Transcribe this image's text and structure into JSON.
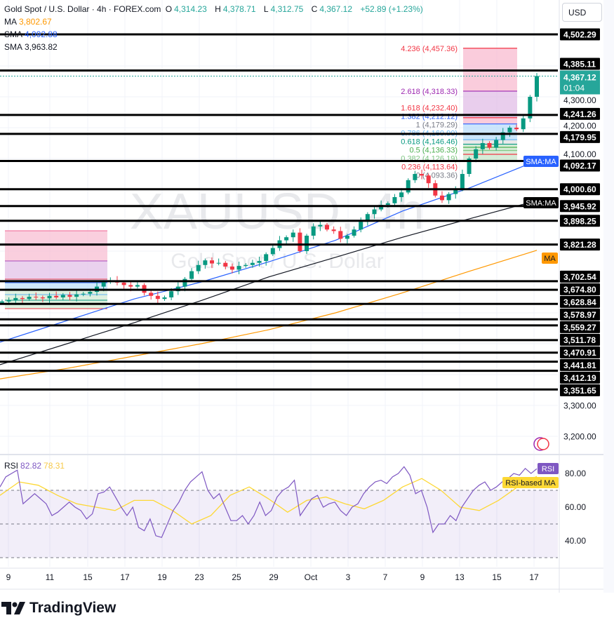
{
  "header": {
    "symbol": "Gold Spot / U.S. Dollar · 4h · FOREX.com",
    "open_label": "O",
    "open": "4,314.23",
    "high_label": "H",
    "high": "4,378.71",
    "low_label": "L",
    "low": "4,312.75",
    "close_label": "C",
    "close": "4,367.12",
    "change": "+52.89 (+1.23%)"
  },
  "indicators": [
    {
      "name": "MA",
      "value": "3,802.67",
      "color": "#ff9800"
    },
    {
      "name": "SMA",
      "value": "4,092.88",
      "color": "#2962ff"
    },
    {
      "name": "SMA",
      "value": "3,963.82",
      "color": "#131722"
    }
  ],
  "currency_button": "USD",
  "watermark": {
    "line1": "XAUUSD, 4h",
    "line2": "Gold Spot / U.S. Dollar"
  },
  "current_price": {
    "value": "4,367.12",
    "countdown": "01:04",
    "color": "#26a69a"
  },
  "price_axis_ticks": [
    "4,300.00",
    "4,200.00",
    "4,100.00",
    "3,300.00",
    "3,200.00"
  ],
  "level_lines": [
    "4,502.29",
    "4,385.11",
    "4,241.26",
    "4,179.95",
    "4,092.17",
    "4,000.60",
    "3,945.92",
    "3,898.25",
    "3,821.28",
    "3,702.54",
    "3,674.80",
    "3,628.84",
    "3,578.97",
    "3,559.27",
    "3,511.78",
    "3,470.91",
    "3,441.81",
    "3,412.19",
    "3,351.65"
  ],
  "fib_levels": [
    {
      "label": "4.236 (4,457.36)",
      "price": 4457.36,
      "color": "#f23645"
    },
    {
      "label": "2.618 (4,318.33)",
      "price": 4318.33,
      "color": "#9c27b0"
    },
    {
      "label": "1.618 (4,232.40)",
      "price": 4232.4,
      "color": "#f23645"
    },
    {
      "label": "1.382 (4,212.12)",
      "price": 4212.12,
      "color": "#2962ff"
    },
    {
      "label": "1 (4,179.29)",
      "price": 4179.29,
      "color": "#787b86"
    },
    {
      "label": "0.786 (4,160.90)",
      "price": 4160.9,
      "color": "#64b5f6"
    },
    {
      "label": "0.618 (4,146.46)",
      "price": 4146.46,
      "color": "#089981"
    },
    {
      "label": "0.5 (4,136.33)",
      "price": 4136.33,
      "color": "#4caf50"
    },
    {
      "label": "0.382 (4,126.19)",
      "price": 4126.19,
      "color": "#81c784"
    },
    {
      "label": "0.236 (4,113.64)",
      "price": 4113.64,
      "color": "#f23645"
    },
    {
      "label": "0 (4,093.36)",
      "price": 4093.36,
      "color": "#787b86"
    }
  ],
  "tags": {
    "sma_blue": "SMA:MA",
    "sma_black": "SMA:MA",
    "ma": "MA",
    "rsi": "RSI",
    "rsi_ma": "RSI-based MA"
  },
  "rsi": {
    "label": "RSI",
    "value": "82.82",
    "ma_value": "78.31",
    "ticks": [
      "80.00",
      "60.00",
      "40.00"
    ]
  },
  "time_axis": [
    "9",
    "11",
    "15",
    "17",
    "19",
    "23",
    "25",
    "29",
    "Oct",
    "3",
    "7",
    "9",
    "13",
    "15",
    "17"
  ],
  "brand": "TradingView",
  "chart_data": {
    "type": "candlestick",
    "closes": [
      3637,
      3640,
      3648,
      3645,
      3652,
      3650,
      3647,
      3655,
      3650,
      3658,
      3652,
      3660,
      3662,
      3668,
      3685,
      3700,
      3705,
      3698,
      3690,
      3685,
      3690,
      3665,
      3655,
      3645,
      3650,
      3670,
      3685,
      3710,
      3735,
      3755,
      3770,
      3760,
      3762,
      3750,
      3740,
      3752,
      3755,
      3762,
      3768,
      3790,
      3810,
      3835,
      3845,
      3860,
      3800,
      3850,
      3880,
      3885,
      3870,
      3865,
      3840,
      3850,
      3870,
      3895,
      3920,
      3935,
      3950,
      3955,
      3975,
      3990,
      4030,
      4050,
      4045,
      4020,
      3980,
      3965,
      3985,
      4000,
      4050,
      4100,
      4130,
      4150,
      4135,
      4160,
      4185,
      4200,
      4195,
      4230,
      4300,
      4367.12
    ],
    "sma_fast": [
      3505,
      3575,
      3645,
      3700,
      3765,
      3835,
      3930,
      4005,
      4092.88
    ],
    "sma_slow": [
      3432,
      3500,
      3568,
      3640,
      3716,
      3780,
      3845,
      3905,
      3963.82
    ],
    "ma": [
      3386,
      3420,
      3460,
      3500,
      3545,
      3600,
      3665,
      3735,
      3802.67
    ],
    "rsi_values": [
      72,
      78,
      80,
      82,
      62,
      65,
      68,
      65,
      62,
      55,
      57,
      60,
      63,
      60,
      58,
      53,
      56,
      68,
      69,
      72,
      66,
      60,
      55,
      60,
      48,
      46,
      53,
      43,
      42,
      50,
      58,
      63,
      70,
      75,
      78,
      81,
      70,
      65,
      68,
      60,
      52,
      52,
      55,
      50,
      55,
      63,
      55,
      58,
      66,
      70,
      72,
      76,
      55,
      60,
      65,
      67,
      60,
      62,
      63,
      58,
      55,
      60,
      62,
      68,
      72,
      75,
      76,
      74,
      78,
      80,
      84,
      79,
      68,
      70,
      60,
      45,
      50,
      50,
      55,
      52,
      60,
      65,
      70,
      73,
      75,
      70,
      72,
      75,
      77,
      80,
      79,
      83,
      80,
      82.82
    ],
    "rsi_ma": [
      67,
      75,
      73,
      67,
      62,
      60,
      58,
      64,
      64,
      58,
      50,
      55,
      67,
      72,
      65,
      57,
      64,
      66,
      62,
      59,
      64,
      72,
      77,
      70,
      60,
      58,
      64,
      72,
      78.31
    ],
    "price_range": [
      3000,
      4613
    ],
    "rsi_range": [
      24,
      90
    ]
  }
}
